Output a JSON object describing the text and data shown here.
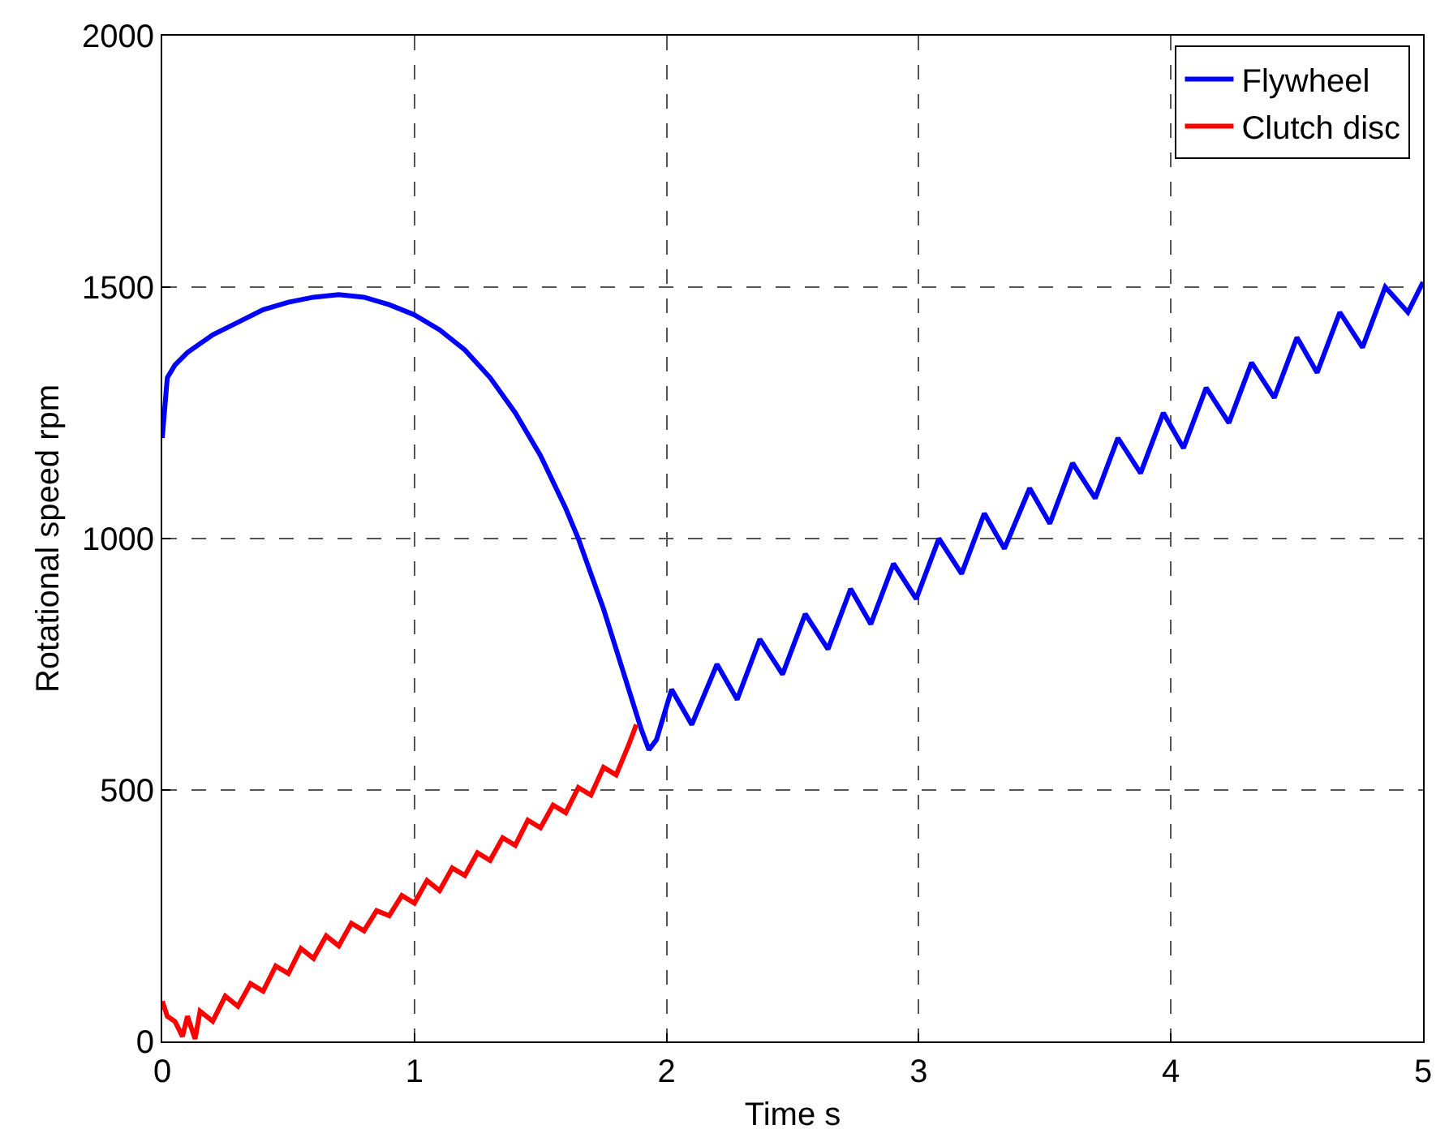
{
  "chart_data": {
    "type": "line",
    "xlabel": "Time s",
    "ylabel": "Rotational speed rpm",
    "xlim": [
      0,
      5
    ],
    "ylim": [
      0,
      2000
    ],
    "xticks": [
      0,
      1,
      2,
      3,
      4,
      5
    ],
    "yticks": [
      0,
      500,
      1000,
      1500,
      2000
    ],
    "grid": true,
    "legend": "top right",
    "line_style": "solid",
    "marker": "none",
    "series": [
      {
        "name": "Flywheel",
        "color": "#0000ff",
        "x": [
          0,
          0.02,
          0.05,
          0.1,
          0.2,
          0.3,
          0.4,
          0.5,
          0.6,
          0.7,
          0.8,
          0.9,
          1.0,
          1.1,
          1.2,
          1.3,
          1.4,
          1.5,
          1.6,
          1.65,
          1.7,
          1.75,
          1.8,
          1.85,
          1.9,
          1.93,
          1.96,
          2.02,
          2.1,
          2.2,
          2.28,
          2.37,
          2.46,
          2.55,
          2.64,
          2.73,
          2.81,
          2.9,
          2.99,
          3.08,
          3.17,
          3.26,
          3.34,
          3.44,
          3.52,
          3.61,
          3.7,
          3.79,
          3.88,
          3.97,
          4.05,
          4.14,
          4.23,
          4.32,
          4.41,
          4.5,
          4.58,
          4.67,
          4.76,
          4.85,
          4.94,
          5.0
        ],
        "values": [
          1200,
          1320,
          1345,
          1370,
          1405,
          1430,
          1455,
          1470,
          1480,
          1485,
          1480,
          1465,
          1445,
          1415,
          1375,
          1320,
          1250,
          1165,
          1060,
          1000,
          930,
          860,
          780,
          700,
          620,
          580,
          600,
          700,
          630,
          750,
          680,
          800,
          730,
          850,
          780,
          900,
          830,
          950,
          880,
          1000,
          930,
          1050,
          980,
          1100,
          1030,
          1150,
          1080,
          1200,
          1130,
          1250,
          1180,
          1300,
          1230,
          1350,
          1280,
          1400,
          1330,
          1450,
          1380,
          1500,
          1450,
          1510
        ]
      },
      {
        "name": "Clutch disc",
        "color": "#ff0000",
        "x": [
          0,
          0.02,
          0.05,
          0.08,
          0.1,
          0.13,
          0.15,
          0.2,
          0.25,
          0.3,
          0.35,
          0.4,
          0.45,
          0.5,
          0.55,
          0.6,
          0.65,
          0.7,
          0.75,
          0.8,
          0.85,
          0.9,
          0.95,
          1.0,
          1.05,
          1.1,
          1.15,
          1.2,
          1.25,
          1.3,
          1.35,
          1.4,
          1.45,
          1.5,
          1.55,
          1.6,
          1.65,
          1.7,
          1.75,
          1.8,
          1.85,
          1.88
        ],
        "values": [
          80,
          50,
          40,
          10,
          50,
          5,
          60,
          40,
          90,
          70,
          115,
          100,
          150,
          135,
          185,
          165,
          210,
          190,
          235,
          220,
          260,
          250,
          290,
          275,
          320,
          300,
          345,
          330,
          375,
          360,
          405,
          390,
          440,
          425,
          470,
          455,
          505,
          490,
          545,
          530,
          590,
          630
        ]
      }
    ]
  }
}
